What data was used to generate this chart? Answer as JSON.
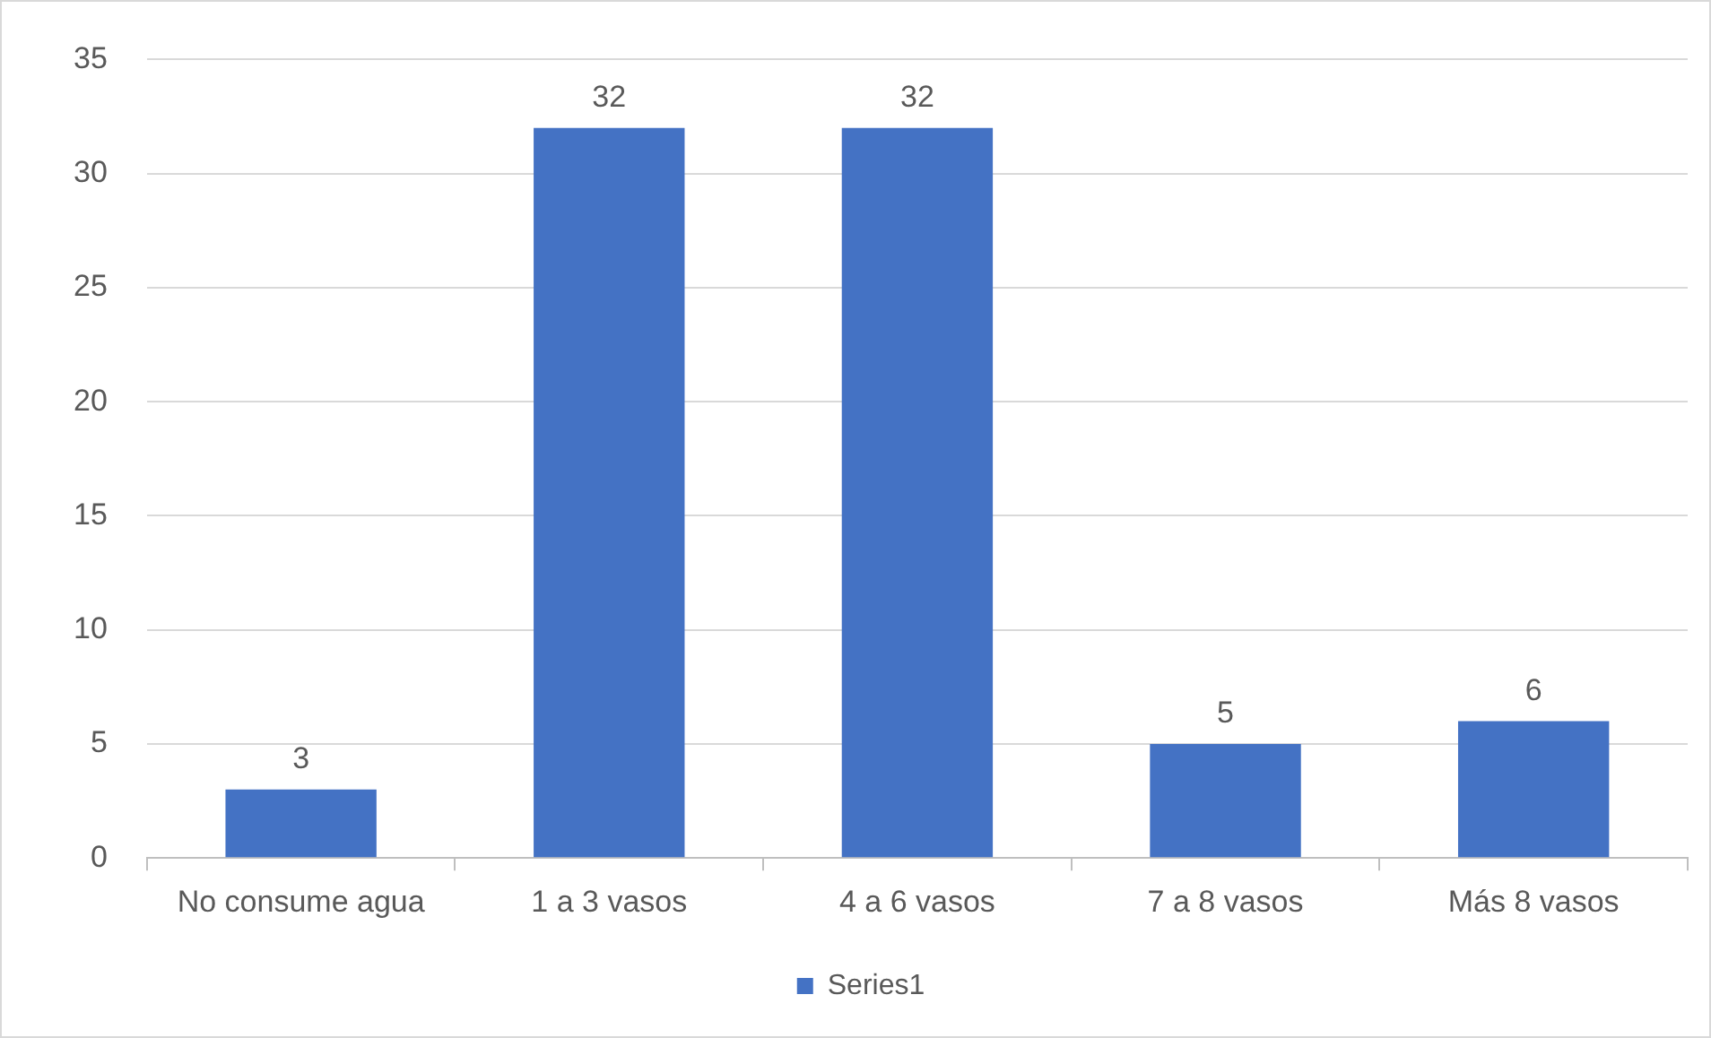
{
  "chart_data": {
    "type": "bar",
    "categories": [
      "No consume agua",
      "1 a 3 vasos",
      "4 a 6 vasos",
      "7 a 8 vasos",
      "Más 8 vasos"
    ],
    "series": [
      {
        "name": "Series1",
        "color": "#4472c4",
        "values": [
          3,
          32,
          32,
          5,
          6
        ]
      }
    ],
    "ylim": [
      0,
      35
    ],
    "yticks": [
      0,
      5,
      10,
      15,
      20,
      25,
      30,
      35
    ],
    "grid": "y",
    "legend": "bottom",
    "data_labels": true
  }
}
